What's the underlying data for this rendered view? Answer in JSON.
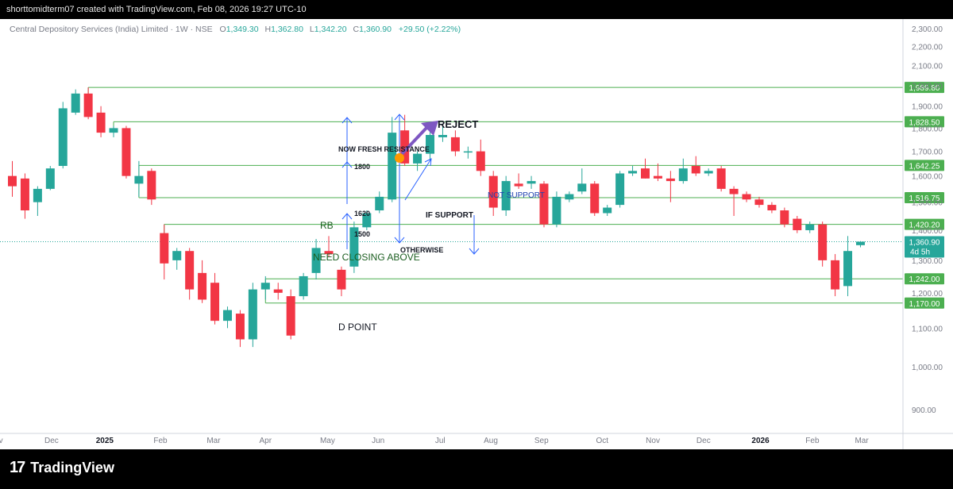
{
  "header": {
    "attribution": "shorttomidterm07 created with TradingView.com, Feb 08, 2026 19:27 UTC-10"
  },
  "brand": {
    "logo_text": "TradingView"
  },
  "colors": {
    "up": "#26a69a",
    "down": "#f23645",
    "level_line": "#4caf50",
    "arrow": "#2962ff",
    "reject_arrow": "#7e57c2",
    "marker": "#ff9800",
    "note_blue": "#1e40af",
    "note_green": "#1b5e20"
  },
  "legend": {
    "symbol": "Central Depository Services (India) Limited · 1W · NSE",
    "o_label": "O",
    "o_value": "1,349.30",
    "h_label": "H",
    "h_value": "1,362.80",
    "l_label": "L",
    "l_value": "1,342.20",
    "c_label": "C",
    "c_value": "1,360.90",
    "change": "+29.50 (+2.22%)"
  },
  "chart_data": {
    "type": "candlestick",
    "interval": "1W",
    "y_axis": {
      "scale": "log",
      "range": [
        850,
        2380
      ],
      "ticks": [
        {
          "value": 900,
          "label": "900.00"
        },
        {
          "value": 1000,
          "label": "1,000.00"
        },
        {
          "value": 1100,
          "label": "1,100.00"
        },
        {
          "value": 1200,
          "label": "1,200.00"
        },
        {
          "value": 1300,
          "label": "1,300.00"
        },
        {
          "value": 1400,
          "label": "1,400.00"
        },
        {
          "value": 1500,
          "label": "1,500.00"
        },
        {
          "value": 1600,
          "label": "1,600.00"
        },
        {
          "value": 1700,
          "label": "1,700.00"
        },
        {
          "value": 1800,
          "label": "1,800.00"
        },
        {
          "value": 1900,
          "label": "1,900.00"
        },
        {
          "value": 2000,
          "label": "2,000.00"
        },
        {
          "value": 2100,
          "label": "2,100.00"
        },
        {
          "value": 2200,
          "label": "2,200.00"
        },
        {
          "value": 2300,
          "label": "2,300.00"
        }
      ]
    },
    "x_axis": {
      "labels": [
        {
          "label": "Nov",
          "bold": false,
          "index": -1.3
        },
        {
          "label": "Dec",
          "bold": false,
          "index": 3.1
        },
        {
          "label": "2025",
          "bold": true,
          "index": 7.3
        },
        {
          "label": "Feb",
          "bold": false,
          "index": 11.7
        },
        {
          "label": "Mar",
          "bold": false,
          "index": 15.9
        },
        {
          "label": "Apr",
          "bold": false,
          "index": 20.0
        },
        {
          "label": "May",
          "bold": false,
          "index": 24.9
        },
        {
          "label": "Jun",
          "bold": false,
          "index": 28.9
        },
        {
          "label": "Jul",
          "bold": false,
          "index": 33.8
        },
        {
          "label": "Aug",
          "bold": false,
          "index": 37.8
        },
        {
          "label": "Sep",
          "bold": false,
          "index": 41.8
        },
        {
          "label": "Oct",
          "bold": false,
          "index": 46.6
        },
        {
          "label": "Nov",
          "bold": false,
          "index": 50.6
        },
        {
          "label": "Dec",
          "bold": false,
          "index": 54.6
        },
        {
          "label": "2026",
          "bold": true,
          "index": 59.1
        },
        {
          "label": "Feb",
          "bold": false,
          "index": 63.2
        },
        {
          "label": "Mar",
          "bold": false,
          "index": 67.1
        }
      ]
    },
    "candles": [
      {
        "o": 1600,
        "h": 1660,
        "l": 1520,
        "c": 1560
      },
      {
        "o": 1590,
        "h": 1610,
        "l": 1440,
        "c": 1470
      },
      {
        "o": 1500,
        "h": 1560,
        "l": 1450,
        "c": 1550
      },
      {
        "o": 1550,
        "h": 1640,
        "l": 1545,
        "c": 1630
      },
      {
        "o": 1640,
        "h": 1920,
        "l": 1630,
        "c": 1890
      },
      {
        "o": 1870,
        "h": 1980,
        "l": 1860,
        "c": 1960
      },
      {
        "o": 1960,
        "h": 1990,
        "l": 1840,
        "c": 1850
      },
      {
        "o": 1870,
        "h": 1900,
        "l": 1760,
        "c": 1780
      },
      {
        "o": 1780,
        "h": 1810,
        "l": 1760,
        "c": 1800
      },
      {
        "o": 1800,
        "h": 1810,
        "l": 1590,
        "c": 1600
      },
      {
        "o": 1570,
        "h": 1660,
        "l": 1520,
        "c": 1600
      },
      {
        "o": 1620,
        "h": 1630,
        "l": 1490,
        "c": 1510
      },
      {
        "o": 1390,
        "h": 1420,
        "l": 1240,
        "c": 1290
      },
      {
        "o": 1300,
        "h": 1340,
        "l": 1270,
        "c": 1330
      },
      {
        "o": 1330,
        "h": 1340,
        "l": 1180,
        "c": 1210
      },
      {
        "o": 1260,
        "h": 1300,
        "l": 1170,
        "c": 1180
      },
      {
        "o": 1230,
        "h": 1260,
        "l": 1110,
        "c": 1120
      },
      {
        "o": 1120,
        "h": 1160,
        "l": 1100,
        "c": 1150
      },
      {
        "o": 1140,
        "h": 1150,
        "l": 1050,
        "c": 1070
      },
      {
        "o": 1070,
        "h": 1230,
        "l": 1050,
        "c": 1210
      },
      {
        "o": 1210,
        "h": 1250,
        "l": 1180,
        "c": 1230
      },
      {
        "o": 1210,
        "h": 1230,
        "l": 1180,
        "c": 1200
      },
      {
        "o": 1190,
        "h": 1210,
        "l": 1070,
        "c": 1080
      },
      {
        "o": 1190,
        "h": 1260,
        "l": 1180,
        "c": 1250
      },
      {
        "o": 1260,
        "h": 1370,
        "l": 1240,
        "c": 1340
      },
      {
        "o": 1330,
        "h": 1380,
        "l": 1310,
        "c": 1320
      },
      {
        "o": 1270,
        "h": 1280,
        "l": 1190,
        "c": 1210
      },
      {
        "o": 1280,
        "h": 1430,
        "l": 1260,
        "c": 1410
      },
      {
        "o": 1410,
        "h": 1470,
        "l": 1400,
        "c": 1460
      },
      {
        "o": 1470,
        "h": 1540,
        "l": 1460,
        "c": 1520
      },
      {
        "o": 1510,
        "h": 1850,
        "l": 1500,
        "c": 1780
      },
      {
        "o": 1790,
        "h": 1860,
        "l": 1640,
        "c": 1650
      },
      {
        "o": 1650,
        "h": 1700,
        "l": 1620,
        "c": 1690
      },
      {
        "o": 1690,
        "h": 1790,
        "l": 1660,
        "c": 1770
      },
      {
        "o": 1760,
        "h": 1810,
        "l": 1740,
        "c": 1770
      },
      {
        "o": 1760,
        "h": 1790,
        "l": 1680,
        "c": 1700
      },
      {
        "o": 1700,
        "h": 1720,
        "l": 1670,
        "c": 1700
      },
      {
        "o": 1700,
        "h": 1750,
        "l": 1600,
        "c": 1620
      },
      {
        "o": 1600,
        "h": 1620,
        "l": 1450,
        "c": 1480
      },
      {
        "o": 1470,
        "h": 1600,
        "l": 1450,
        "c": 1580
      },
      {
        "o": 1570,
        "h": 1610,
        "l": 1550,
        "c": 1560
      },
      {
        "o": 1570,
        "h": 1600,
        "l": 1550,
        "c": 1580
      },
      {
        "o": 1570,
        "h": 1580,
        "l": 1410,
        "c": 1420
      },
      {
        "o": 1420,
        "h": 1540,
        "l": 1410,
        "c": 1520
      },
      {
        "o": 1510,
        "h": 1540,
        "l": 1500,
        "c": 1530
      },
      {
        "o": 1540,
        "h": 1630,
        "l": 1530,
        "c": 1570
      },
      {
        "o": 1570,
        "h": 1580,
        "l": 1450,
        "c": 1460
      },
      {
        "o": 1460,
        "h": 1490,
        "l": 1450,
        "c": 1480
      },
      {
        "o": 1490,
        "h": 1620,
        "l": 1480,
        "c": 1610
      },
      {
        "o": 1610,
        "h": 1640,
        "l": 1600,
        "c": 1620
      },
      {
        "o": 1630,
        "h": 1670,
        "l": 1590,
        "c": 1590
      },
      {
        "o": 1600,
        "h": 1650,
        "l": 1580,
        "c": 1590
      },
      {
        "o": 1590,
        "h": 1620,
        "l": 1500,
        "c": 1580
      },
      {
        "o": 1580,
        "h": 1670,
        "l": 1570,
        "c": 1630
      },
      {
        "o": 1640,
        "h": 1680,
        "l": 1600,
        "c": 1610
      },
      {
        "o": 1610,
        "h": 1630,
        "l": 1600,
        "c": 1620
      },
      {
        "o": 1630,
        "h": 1640,
        "l": 1540,
        "c": 1550
      },
      {
        "o": 1550,
        "h": 1560,
        "l": 1450,
        "c": 1530
      },
      {
        "o": 1530,
        "h": 1540,
        "l": 1500,
        "c": 1510
      },
      {
        "o": 1510,
        "h": 1520,
        "l": 1480,
        "c": 1490
      },
      {
        "o": 1490,
        "h": 1500,
        "l": 1460,
        "c": 1470
      },
      {
        "o": 1470,
        "h": 1480,
        "l": 1410,
        "c": 1420
      },
      {
        "o": 1440,
        "h": 1450,
        "l": 1390,
        "c": 1400
      },
      {
        "o": 1400,
        "h": 1430,
        "l": 1390,
        "c": 1420
      },
      {
        "o": 1420,
        "h": 1430,
        "l": 1280,
        "c": 1300
      },
      {
        "o": 1300,
        "h": 1320,
        "l": 1190,
        "c": 1210
      },
      {
        "o": 1220,
        "h": 1380,
        "l": 1190,
        "c": 1330
      },
      {
        "o": 1349.3,
        "h": 1362.8,
        "l": 1342.2,
        "c": 1360.9
      }
    ],
    "price_levels": [
      {
        "value": 1989.8,
        "label": "1,989.80",
        "start_index": 6
      },
      {
        "value": 1828.5,
        "label": "1,828.50",
        "start_index": 8
      },
      {
        "value": 1642.25,
        "label": "1,642.25",
        "start_index": 10
      },
      {
        "value": 1516.75,
        "label": "1,516.75",
        "start_index": 10
      },
      {
        "value": 1420.2,
        "label": "1,420.20",
        "start_index": 12
      },
      {
        "value": 1242.0,
        "label": "1,242.00",
        "start_index": 20
      },
      {
        "value": 1170.0,
        "label": "1,170.00",
        "start_index": 20
      }
    ],
    "last_price": {
      "value": 1360.9,
      "label": "1,360.90",
      "countdown": "4d 5h"
    },
    "annotations": [
      {
        "id": "reject",
        "text": "REJECT"
      },
      {
        "id": "fresh",
        "text": "NOW FRESH RESISTANCE"
      },
      {
        "id": "a1800",
        "text": "1800"
      },
      {
        "id": "a1620",
        "text": "1620"
      },
      {
        "id": "a1500",
        "text": "1500"
      },
      {
        "id": "rb",
        "text": "RB"
      },
      {
        "id": "closing",
        "text": "NEED CLOSING ABOVE"
      },
      {
        "id": "ifsupport",
        "text": "IF SUPPORT"
      },
      {
        "id": "notsupport",
        "text": "NOT SUPPORT"
      },
      {
        "id": "otherwise",
        "text": "OTHERWISE"
      },
      {
        "id": "dpoint",
        "text": "D POINT"
      }
    ]
  }
}
